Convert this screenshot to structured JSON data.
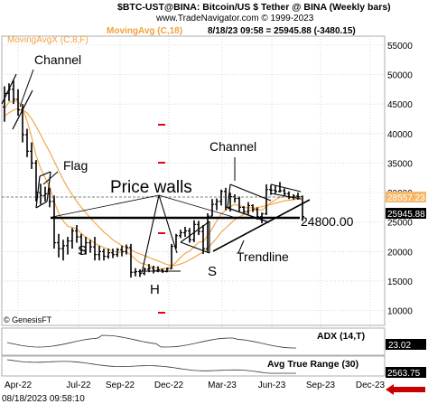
{
  "header": {
    "title": "$BTC-UST@BINA:  Bitcoin/US $ Tether @ BINA  (Weekly bars)",
    "copyright": "www.TradeNavigator.com © 1999-2023",
    "indicator_legend": "MovingAvgX (C,8,F)",
    "indicator_legend_2": "MovingAvg (C,18)",
    "date_readout": "8/18/23  09:58 = 25945.88  (-3480.15)"
  },
  "annotations": {
    "channel_top": "Channel",
    "flag": "Flag",
    "price_walls": "Price walls",
    "channel_right": "Channel",
    "level": "24800.00",
    "trendline": "Trendline",
    "s_left": "S",
    "h": "H",
    "s_right": "S",
    "brand": "© GenesisFT"
  },
  "price_tags": {
    "ma_tag": "28557.23",
    "last_tag": "25945.88"
  },
  "lower_panels": {
    "adx_label": "ADX (14,T)",
    "adx_value": "23.02",
    "atr_label": "Avg True Range (30)",
    "atr_value": "2563.75"
  },
  "footer": {
    "timestamp": "08/18/2023  09:58:10"
  },
  "colors": {
    "up_bar": "#000000",
    "moving_avg_fast": "#f2a03d",
    "moving_avg_slow": "#f2a03d",
    "marker": "#e8001c",
    "price_tag_bg": "#000000",
    "ma_tag_bg": "#f6b868"
  },
  "chart_data": {
    "type": "ohlc",
    "title": "$BTC-UST@BINA:  Bitcoin/US $ Tether @ BINA  (Weekly bars)",
    "x_tick_labels": [
      "Apr-22",
      "Jul-22",
      "Sep-22",
      "Dec-22",
      "Mar-23",
      "Jun-23",
      "Sep-23",
      "Dec-23"
    ],
    "y_tick_labels": [
      55000,
      50000,
      45000,
      40000,
      35000,
      30000,
      25000,
      20000,
      15000,
      10000
    ],
    "ylim": [
      7500,
      56500
    ],
    "grid": true,
    "x": [
      "Apr-22",
      "Apr-22",
      "Apr-22",
      "Apr-22",
      "May-22",
      "May-22",
      "May-22",
      "May-22",
      "Jun-22",
      "Jun-22",
      "Jun-22",
      "Jun-22",
      "Jul-22",
      "Jul-22",
      "Jul-22",
      "Jul-22",
      "Aug-22",
      "Aug-22",
      "Aug-22",
      "Aug-22",
      "Sep-22",
      "Sep-22",
      "Sep-22",
      "Sep-22",
      "Oct-22",
      "Oct-22",
      "Oct-22",
      "Oct-22",
      "Nov-22",
      "Nov-22",
      "Nov-22",
      "Nov-22",
      "Dec-22",
      "Dec-22",
      "Dec-22",
      "Dec-22",
      "Jan-23",
      "Jan-23",
      "Jan-23",
      "Jan-23",
      "Feb-23",
      "Feb-23",
      "Feb-23",
      "Feb-23",
      "Mar-23",
      "Mar-23",
      "Mar-23",
      "Mar-23",
      "Apr-23",
      "Apr-23",
      "Apr-23",
      "Apr-23",
      "May-23",
      "May-23",
      "May-23",
      "May-23",
      "Jun-23",
      "Jun-23",
      "Jun-23",
      "Jun-23",
      "Jul-23",
      "Jul-23",
      "Jul-23",
      "Jul-23",
      "Aug-23",
      "Aug-23",
      "Aug-23"
    ],
    "series": [
      {
        "name": "$BTC-UST@BINA",
        "ohlc": [
          [
            44500,
            48000,
            42000,
            46800
          ],
          [
            46800,
            48500,
            45500,
            47500
          ],
          [
            47500,
            49000,
            45000,
            45800
          ],
          [
            45800,
            47500,
            43000,
            44000
          ],
          [
            44000,
            45000,
            38500,
            39800
          ],
          [
            39800,
            40800,
            36000,
            37000
          ],
          [
            37000,
            38500,
            34000,
            35000
          ],
          [
            35000,
            35500,
            28500,
            30000
          ],
          [
            30000,
            31500,
            28000,
            29500
          ],
          [
            29500,
            31000,
            28500,
            29800
          ],
          [
            29800,
            30800,
            27500,
            28500
          ],
          [
            28500,
            29500,
            20500,
            21500
          ],
          [
            21500,
            23000,
            19000,
            20500
          ],
          [
            20500,
            22000,
            18500,
            21000
          ],
          [
            21000,
            22500,
            19500,
            21800
          ],
          [
            21800,
            24000,
            20500,
            23500
          ],
          [
            23500,
            24500,
            21500,
            22500
          ],
          [
            22500,
            23000,
            19500,
            20200
          ],
          [
            20200,
            22500,
            19500,
            21500
          ],
          [
            21500,
            22000,
            19800,
            20800
          ],
          [
            20800,
            22500,
            18500,
            19500
          ],
          [
            19500,
            21000,
            18500,
            20000
          ],
          [
            20000,
            20500,
            18500,
            19200
          ],
          [
            19200,
            20500,
            18800,
            19800
          ],
          [
            19800,
            20500,
            18900,
            19500
          ],
          [
            19500,
            20600,
            19100,
            20300
          ],
          [
            20300,
            21000,
            19200,
            20000
          ],
          [
            20000,
            21200,
            19500,
            20700
          ],
          [
            20700,
            21300,
            15600,
            16500
          ],
          [
            16500,
            17200,
            15800,
            16600
          ],
          [
            16600,
            17000,
            15700,
            16300
          ],
          [
            16300,
            17300,
            16000,
            17000
          ],
          [
            17000,
            17900,
            16500,
            17200
          ],
          [
            17200,
            17600,
            16300,
            16800
          ],
          [
            16800,
            17500,
            16500,
            16900
          ],
          [
            16900,
            17100,
            16400,
            16600
          ],
          [
            16600,
            17300,
            16500,
            17100
          ],
          [
            17100,
            21300,
            17000,
            20900
          ],
          [
            20900,
            23000,
            20500,
            22700
          ],
          [
            22700,
            23700,
            22300,
            23200
          ],
          [
            23200,
            24200,
            22500,
            23500
          ],
          [
            23500,
            24000,
            21500,
            22000
          ],
          [
            22000,
            25300,
            21600,
            24600
          ],
          [
            24600,
            25200,
            22800,
            23400
          ],
          [
            23400,
            24500,
            19600,
            20500
          ],
          [
            20500,
            26500,
            19800,
            26000
          ],
          [
            26000,
            28900,
            26000,
            28000
          ],
          [
            28000,
            29000,
            27000,
            28500
          ],
          [
            28500,
            30500,
            27800,
            30200
          ],
          [
            30200,
            30800,
            27000,
            27500
          ],
          [
            27500,
            30000,
            26800,
            29300
          ],
          [
            29300,
            29700,
            28300,
            29000
          ],
          [
            29000,
            29300,
            26800,
            27500
          ],
          [
            27500,
            27700,
            26500,
            26800
          ],
          [
            26800,
            28400,
            26300,
            27800
          ],
          [
            27800,
            28000,
            26700,
            27100
          ],
          [
            27100,
            27500,
            25400,
            25900
          ],
          [
            25900,
            26600,
            24800,
            26400
          ],
          [
            26400,
            31400,
            26200,
            30500
          ],
          [
            30500,
            31300,
            29600,
            30400
          ],
          [
            30400,
            31200,
            29800,
            30200
          ],
          [
            30200,
            31800,
            30000,
            30300
          ],
          [
            30300,
            30700,
            29500,
            29800
          ],
          [
            29800,
            30200,
            28900,
            29200
          ],
          [
            29200,
            29700,
            28800,
            29400
          ],
          [
            29400,
            30000,
            28800,
            29300
          ],
          [
            29300,
            29500,
            25200,
            25946
          ]
        ]
      },
      {
        "name": "MovingAvgX (C,8,F)",
        "values": [
          44300,
          45300,
          45500,
          45400,
          44400,
          42100,
          39400,
          36200,
          34100,
          32500,
          31000,
          28500,
          26500,
          25200,
          24300,
          24100,
          23800,
          23100,
          22400,
          22000,
          21400,
          21000,
          20700,
          20400,
          20100,
          19900,
          19900,
          20000,
          19400,
          18700,
          18100,
          17900,
          17600,
          17400,
          17200,
          17100,
          17100,
          17500,
          18200,
          19000,
          19700,
          20100,
          20800,
          21600,
          21700,
          22700,
          23900,
          25200,
          26400,
          27000,
          27600,
          28000,
          27800,
          27500,
          27400,
          27500,
          27200,
          27000,
          27600,
          28300,
          28800,
          29200,
          29300,
          29300,
          29300,
          29300,
          28700
        ]
      },
      {
        "name": "MovingAvg (C,18)",
        "values": [
          43000,
          43500,
          44000,
          44200,
          44000,
          43500,
          42500,
          41200,
          39800,
          38300,
          36900,
          35300,
          33700,
          32200,
          30800,
          29600,
          28500,
          27500,
          26600,
          25700,
          24900,
          24100,
          23300,
          22700,
          22000,
          21500,
          21000,
          20700,
          20300,
          19900,
          19600,
          19300,
          19000,
          18700,
          18400,
          18100,
          17800,
          17600,
          17700,
          17900,
          18200,
          18600,
          19000,
          19500,
          19900,
          20600,
          21400,
          22300,
          23300,
          24000,
          24700,
          25400,
          25900,
          26300,
          26800,
          27200,
          27500,
          27600,
          27800,
          28000,
          28200,
          28400,
          28600,
          28700,
          28800,
          28900,
          28900
        ]
      }
    ],
    "horizontal_levels": [
      {
        "label": "24800.00",
        "value": 24800
      }
    ],
    "lower_indicators": [
      {
        "name": "ADX (14,T)",
        "last": 23.02
      },
      {
        "name": "Avg True Range (30)",
        "last": 2563.75
      }
    ]
  }
}
